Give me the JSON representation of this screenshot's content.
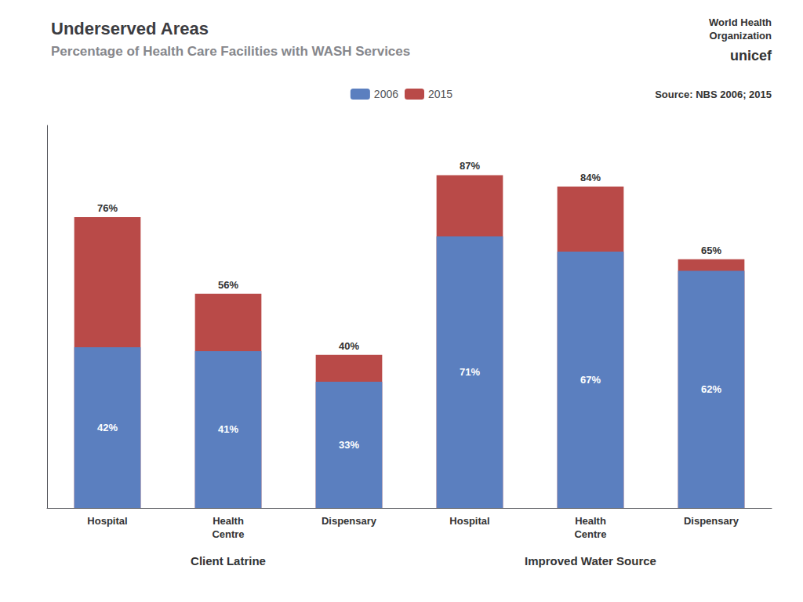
{
  "chart_data": {
    "type": "bar",
    "title": "Underserved Areas",
    "subtitle": "Percentage of Health Care Facilities with WASH Services",
    "annotations": [
      "World Health\nOrganization",
      "unicef",
      "Source: NBS 2006; 2015"
    ],
    "categories": [
      "Hospital",
      "Health\nCentre",
      "Dispensary",
      "Hospital",
      "Health\nCentre",
      "Dispensary"
    ],
    "group_labels": [
      "Client Latrine",
      "Improved Water Source"
    ],
    "series": [
      {
        "name": "2006",
        "color": "#5B7FBF",
        "values": [
          42,
          41,
          33,
          71,
          67,
          62
        ],
        "value_labels": [
          "42%",
          "41%",
          "33%",
          "71%",
          "67%",
          "62%"
        ]
      },
      {
        "name": "2015",
        "color": "#B94A48",
        "values": [
          76,
          56,
          40,
          87,
          84,
          65
        ],
        "value_labels": [
          "76%",
          "56%",
          "40%",
          "87%",
          "84%",
          "65%"
        ]
      }
    ],
    "ylim": [
      0,
      100
    ],
    "grid": false,
    "legend": "top",
    "data_labels": true,
    "tick_labels": "x",
    "stacked": false
  }
}
